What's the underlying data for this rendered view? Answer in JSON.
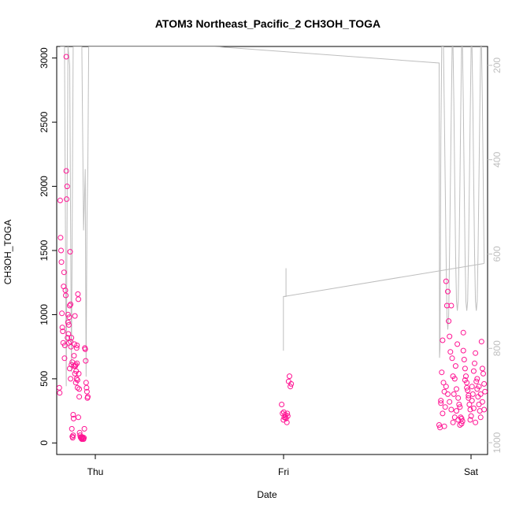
{
  "chart_data": {
    "type": "scatter",
    "title": "ATOM3 Northeast_Pacific_2 CH3OH_TOGA",
    "xlabel": "Date",
    "ylabel": "CH3OH_TOGA",
    "x_tick_labels": [
      "Thu",
      "Fri",
      "Sat"
    ],
    "y_ticks": [
      0,
      500,
      1000,
      1500,
      2000,
      2500,
      3000
    ],
    "y_tick_labels": [
      "0",
      "500",
      "1000",
      "1500",
      "2000",
      "2500",
      "3000"
    ],
    "ylim": [
      -90,
      3090
    ],
    "xlim_hours": [
      -2.2,
      47.6
    ],
    "right_axis": {
      "ticks": [
        200,
        400,
        600,
        800,
        1000
      ],
      "tick_labels": [
        "200",
        "400",
        "600",
        "800",
        "1000"
      ],
      "ylim": [
        1025,
        160
      ],
      "color": "#bebebe"
    },
    "grid": false,
    "legend": "none",
    "point_color": "#ff1493",
    "line_color": "#bebebe",
    "series": [
      {
        "label_of_axis": "CH3OH_TOGA",
        "points": [
          [
            -1.9,
            430
          ],
          [
            -1.85,
            390
          ],
          [
            -1.8,
            1890
          ],
          [
            -1.75,
            1600
          ],
          [
            -1.7,
            1500
          ],
          [
            -1.65,
            1410
          ],
          [
            -1.6,
            1010
          ],
          [
            -1.55,
            900
          ],
          [
            -1.5,
            870
          ],
          [
            -1.45,
            780
          ],
          [
            -1.4,
            1220
          ],
          [
            -1.35,
            1330
          ],
          [
            -1.3,
            660
          ],
          [
            -1.25,
            760
          ],
          [
            -1.2,
            1190
          ],
          [
            -1.15,
            1150
          ],
          [
            -1.1,
            2120
          ],
          [
            -1.05,
            1900
          ],
          [
            -1.0,
            2000
          ],
          [
            -0.95,
            820
          ],
          [
            -0.9,
            940
          ],
          [
            -0.85,
            850
          ],
          [
            -0.8,
            780
          ],
          [
            -0.75,
            980
          ],
          [
            -0.7,
            1070
          ],
          [
            -0.65,
            1490
          ],
          [
            -0.6,
            790
          ],
          [
            -0.55,
            750
          ],
          [
            -0.5,
            610
          ],
          [
            -0.45,
            110
          ],
          [
            -0.4,
            50
          ],
          [
            -0.35,
            40
          ],
          [
            -0.3,
            220
          ],
          [
            -0.25,
            190
          ],
          [
            -0.2,
            680
          ],
          [
            -0.15,
            770
          ],
          [
            -0.1,
            990
          ],
          [
            -0.05,
            600
          ],
          [
            0.0,
            610
          ],
          [
            0.05,
            560
          ],
          [
            0.1,
            740
          ],
          [
            0.15,
            760
          ],
          [
            0.2,
            490
          ],
          [
            0.25,
            1160
          ],
          [
            0.3,
            1120
          ],
          [
            0.35,
            540
          ],
          [
            0.4,
            360
          ],
          [
            0.45,
            80
          ],
          [
            0.5,
            60
          ],
          [
            0.55,
            45
          ],
          [
            0.6,
            40
          ],
          [
            0.65,
            35
          ],
          [
            0.7,
            30
          ],
          [
            0.75,
            40
          ],
          [
            0.8,
            45
          ],
          [
            0.85,
            35
          ],
          [
            0.9,
            30
          ],
          [
            0.95,
            40
          ],
          [
            1.0,
            110
          ],
          [
            1.05,
            740
          ],
          [
            1.1,
            730
          ],
          [
            1.15,
            640
          ],
          [
            1.2,
            470
          ],
          [
            1.25,
            430
          ],
          [
            1.3,
            400
          ],
          [
            1.35,
            350
          ],
          [
            1.4,
            360
          ],
          [
            -0.9,
            1000
          ],
          [
            -0.8,
            920
          ],
          [
            -0.7,
            580
          ],
          [
            -0.6,
            500
          ],
          [
            -0.5,
            820
          ],
          [
            -0.4,
            630
          ],
          [
            -0.3,
            60
          ],
          [
            -0.2,
            600
          ],
          [
            -0.1,
            540
          ],
          [
            0.0,
            470
          ],
          [
            0.1,
            500
          ],
          [
            0.2,
            430
          ],
          [
            0.3,
            200
          ],
          [
            -1.1,
            3010
          ],
          [
            -0.6,
            1080
          ],
          [
            0.15,
            620
          ],
          [
            0.4,
            420
          ],
          [
            23.8,
            300
          ],
          [
            23.9,
            230
          ],
          [
            24.0,
            180
          ],
          [
            24.1,
            200
          ],
          [
            24.2,
            220
          ],
          [
            24.3,
            190
          ],
          [
            24.4,
            160
          ],
          [
            24.5,
            210
          ],
          [
            24.6,
            480
          ],
          [
            24.7,
            520
          ],
          [
            24.8,
            440
          ],
          [
            24.9,
            460
          ],
          [
            24.05,
            240
          ],
          [
            24.25,
            200
          ],
          [
            24.45,
            230
          ],
          [
            42.0,
            140
          ],
          [
            42.1,
            120
          ],
          [
            42.2,
            310
          ],
          [
            42.3,
            550
          ],
          [
            42.4,
            800
          ],
          [
            42.5,
            470
          ],
          [
            42.6,
            400
          ],
          [
            42.7,
            280
          ],
          [
            42.8,
            1260
          ],
          [
            42.9,
            1070
          ],
          [
            43.0,
            1180
          ],
          [
            43.1,
            950
          ],
          [
            43.2,
            830
          ],
          [
            43.3,
            710
          ],
          [
            43.4,
            1070
          ],
          [
            43.5,
            660
          ],
          [
            43.6,
            520
          ],
          [
            43.7,
            380
          ],
          [
            43.8,
            200
          ],
          [
            43.9,
            600
          ],
          [
            44.0,
            250
          ],
          [
            44.1,
            770
          ],
          [
            44.2,
            180
          ],
          [
            44.3,
            300
          ],
          [
            44.4,
            140
          ],
          [
            44.5,
            200
          ],
          [
            44.6,
            190
          ],
          [
            44.7,
            170
          ],
          [
            44.8,
            860
          ],
          [
            44.9,
            650
          ],
          [
            45.0,
            580
          ],
          [
            45.1,
            520
          ],
          [
            45.2,
            470
          ],
          [
            45.3,
            410
          ],
          [
            45.4,
            350
          ],
          [
            45.5,
            300
          ],
          [
            45.6,
            260
          ],
          [
            45.7,
            210
          ],
          [
            45.8,
            440
          ],
          [
            45.9,
            380
          ],
          [
            46.0,
            560
          ],
          [
            46.1,
            620
          ],
          [
            46.2,
            700
          ],
          [
            46.3,
            480
          ],
          [
            46.4,
            420
          ],
          [
            46.5,
            360
          ],
          [
            46.6,
            300
          ],
          [
            46.7,
            250
          ],
          [
            46.8,
            200
          ],
          [
            46.9,
            790
          ],
          [
            47.0,
            580
          ],
          [
            47.1,
            540
          ],
          [
            47.2,
            460
          ],
          [
            47.3,
            400
          ],
          [
            42.2,
            330
          ],
          [
            42.4,
            230
          ],
          [
            42.6,
            130
          ],
          [
            42.8,
            440
          ],
          [
            43.0,
            380
          ],
          [
            43.2,
            320
          ],
          [
            43.4,
            260
          ],
          [
            43.6,
            160
          ],
          [
            43.8,
            500
          ],
          [
            44.0,
            420
          ],
          [
            44.2,
            350
          ],
          [
            44.4,
            280
          ],
          [
            44.6,
            150
          ],
          [
            44.8,
            720
          ],
          [
            45.0,
            490
          ],
          [
            45.2,
            430
          ],
          [
            45.4,
            370
          ],
          [
            45.6,
            180
          ],
          [
            45.8,
            330
          ],
          [
            46.0,
            270
          ],
          [
            46.2,
            160
          ],
          [
            46.4,
            500
          ],
          [
            46.6,
            440
          ],
          [
            46.8,
            380
          ],
          [
            47.0,
            320
          ],
          [
            47.2,
            260
          ]
        ]
      },
      {
        "label_of_axis": "right",
        "line_points": [
          [
            -1.8,
            160
          ],
          [
            -1.6,
            160
          ],
          [
            -1.3,
            160
          ],
          [
            -1.1,
            880
          ],
          [
            -0.9,
            160
          ],
          [
            -0.7,
            200
          ],
          [
            -0.5,
            850
          ],
          [
            -0.3,
            160
          ],
          [
            -0.1,
            160
          ],
          [
            0.1,
            160
          ],
          [
            0.3,
            160
          ],
          [
            0.5,
            160
          ],
          [
            0.7,
            160
          ],
          [
            0.9,
            550
          ],
          [
            1.1,
            420
          ],
          [
            1.2,
            860
          ],
          [
            1.3,
            530
          ],
          [
            1.4,
            420
          ],
          [
            1.5,
            160
          ],
          [
            1.7,
            160
          ],
          [
            16.0,
            160
          ],
          [
            42.0,
            195
          ],
          [
            42.05,
            820
          ],
          [
            42.1,
            800
          ],
          [
            42.2,
            350
          ],
          [
            42.3,
            160
          ],
          [
            42.5,
            160
          ],
          [
            42.6,
            300
          ],
          [
            42.7,
            450
          ],
          [
            42.8,
            600
          ],
          [
            42.9,
            730
          ],
          [
            43.0,
            760
          ],
          [
            43.1,
            730
          ],
          [
            43.2,
            600
          ],
          [
            43.3,
            450
          ],
          [
            43.4,
            300
          ],
          [
            43.5,
            160
          ],
          [
            43.6,
            160
          ],
          [
            43.7,
            280
          ],
          [
            43.8,
            450
          ],
          [
            43.9,
            600
          ],
          [
            44.0,
            700
          ],
          [
            44.1,
            720
          ],
          [
            44.2,
            700
          ],
          [
            44.3,
            600
          ],
          [
            44.4,
            450
          ],
          [
            44.5,
            300
          ],
          [
            44.6,
            160
          ],
          [
            44.7,
            160
          ],
          [
            44.8,
            280
          ],
          [
            44.9,
            450
          ],
          [
            45.0,
            600
          ],
          [
            45.1,
            700
          ],
          [
            45.2,
            720
          ],
          [
            45.3,
            700
          ],
          [
            45.4,
            600
          ],
          [
            45.5,
            450
          ],
          [
            45.6,
            300
          ],
          [
            45.7,
            160
          ],
          [
            45.8,
            160
          ],
          [
            45.9,
            280
          ],
          [
            46.0,
            450
          ],
          [
            46.1,
            600
          ],
          [
            46.2,
            700
          ],
          [
            46.3,
            720
          ],
          [
            46.4,
            700
          ],
          [
            46.5,
            600
          ],
          [
            46.6,
            450
          ],
          [
            46.7,
            300
          ],
          [
            46.8,
            160
          ],
          [
            46.9,
            160
          ],
          [
            47.0,
            280
          ],
          [
            47.1,
            450
          ],
          [
            47.2,
            620
          ]
        ],
        "segments": [
          [
            [
              24.0,
              805
            ],
            [
              24.0,
              690
            ],
            [
              24.1,
              690
            ],
            [
              24.3,
              690
            ],
            [
              24.3,
              630
            ]
          ],
          [
            [
              24.1,
              690
            ],
            [
              47.2,
              620
            ]
          ]
        ]
      }
    ]
  }
}
